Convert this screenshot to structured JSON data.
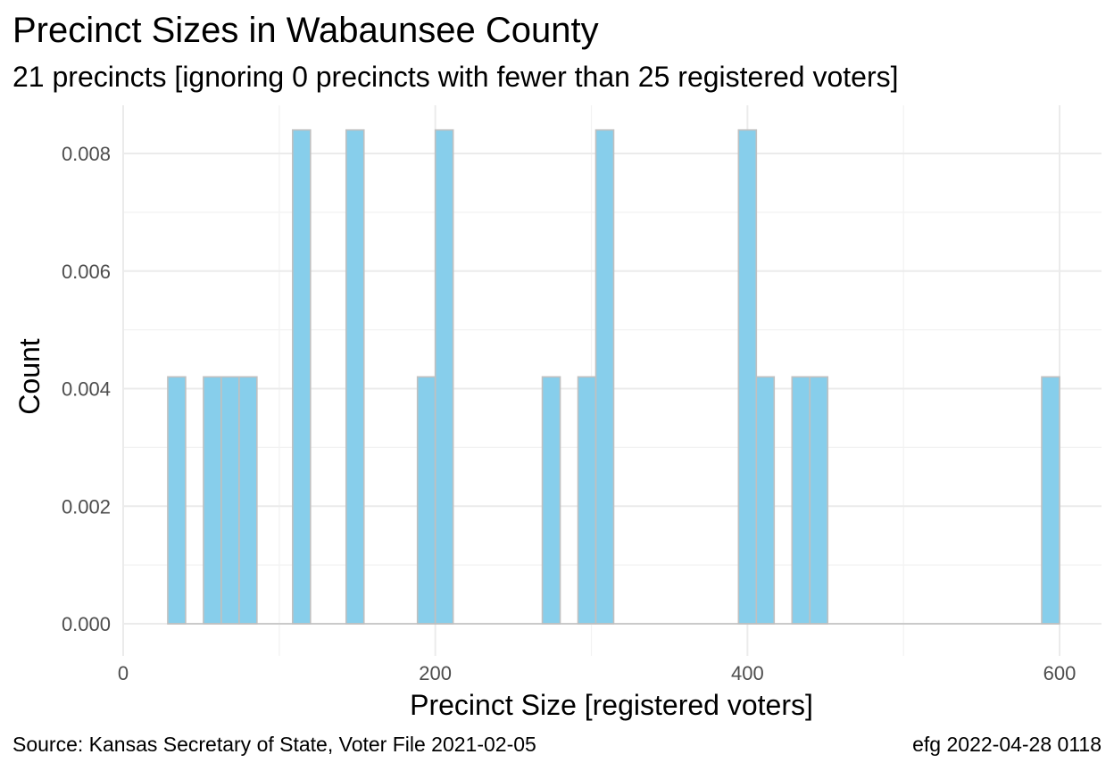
{
  "chart_data": {
    "type": "bar",
    "title": "Precinct Sizes in Wabaunsee County",
    "subtitle": "21 precincts [ignoring 0 precincts with fewer than 25 registered voters]",
    "xlabel": "Precinct Size [registered voters]",
    "ylabel": "Count",
    "xlim": [
      0,
      620
    ],
    "ylim": [
      0,
      0.0084
    ],
    "xticks": [
      0,
      200,
      400,
      600
    ],
    "yticks": [
      0,
      0.002,
      0.004,
      0.006,
      0.008
    ],
    "ytick_labels": [
      "0.000",
      "0.002",
      "0.004",
      "0.006",
      "0.008"
    ],
    "grid": true,
    "bin_width": 11.43,
    "bar_fill": "#87ceeb",
    "bar_outline": "#c0c0c0",
    "bins": [
      {
        "x0": 28.57,
        "x1": 40.0,
        "value": 0.0042
      },
      {
        "x0": 51.43,
        "x1": 62.86,
        "value": 0.0042
      },
      {
        "x0": 62.86,
        "x1": 74.29,
        "value": 0.0042
      },
      {
        "x0": 74.29,
        "x1": 85.71,
        "value": 0.0042
      },
      {
        "x0": 108.57,
        "x1": 120.0,
        "value": 0.0084
      },
      {
        "x0": 142.86,
        "x1": 154.29,
        "value": 0.0084
      },
      {
        "x0": 188.57,
        "x1": 200.0,
        "value": 0.0042
      },
      {
        "x0": 200.0,
        "x1": 211.43,
        "value": 0.0084
      },
      {
        "x0": 268.57,
        "x1": 280.0,
        "value": 0.0042
      },
      {
        "x0": 291.43,
        "x1": 302.86,
        "value": 0.0042
      },
      {
        "x0": 302.86,
        "x1": 314.29,
        "value": 0.0084
      },
      {
        "x0": 394.29,
        "x1": 405.71,
        "value": 0.0084
      },
      {
        "x0": 405.71,
        "x1": 417.14,
        "value": 0.0042
      },
      {
        "x0": 428.57,
        "x1": 440.0,
        "value": 0.0042
      },
      {
        "x0": 440.0,
        "x1": 451.43,
        "value": 0.0042
      },
      {
        "x0": 588.57,
        "x1": 600.0,
        "value": 0.0042
      }
    ]
  },
  "caption": {
    "source": "Source:  Kansas Secretary of State, Voter File  2021-02-05",
    "credit": "efg 2022-04-28 0118"
  }
}
